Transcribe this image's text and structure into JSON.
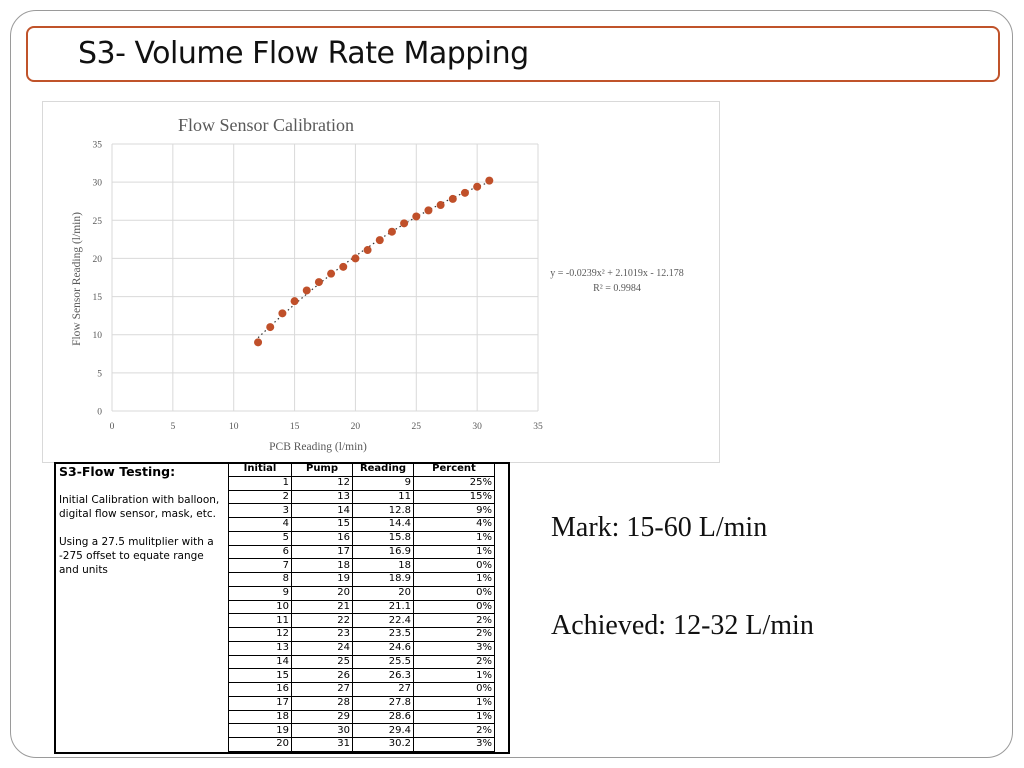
{
  "slide_title": "S3- Volume Flow Rate Mapping",
  "chart_data": {
    "type": "scatter",
    "title": "Flow Sensor Calibration",
    "xlabel": "PCB Reading (l/min)",
    "ylabel": "Flow Sensor Reading (l/min)",
    "xlim": [
      0,
      35
    ],
    "ylim": [
      0,
      35
    ],
    "xticks": [
      "0",
      "5",
      "10",
      "15",
      "20",
      "25",
      "30",
      "35"
    ],
    "yticks": [
      "0",
      "5",
      "10",
      "15",
      "20",
      "25",
      "30",
      "35"
    ],
    "grid": true,
    "point_color": "#c0502a",
    "x": [
      12,
      13,
      14,
      15,
      16,
      17,
      18,
      19,
      20,
      21,
      22,
      23,
      24,
      25,
      26,
      27,
      28,
      29,
      30,
      31
    ],
    "y": [
      9,
      11,
      12.8,
      14.4,
      15.8,
      16.9,
      18,
      18.9,
      20,
      21.1,
      22.4,
      23.5,
      24.6,
      25.5,
      26.3,
      27,
      27.8,
      28.6,
      29.4,
      30.2
    ],
    "trendline": {
      "type": "polynomial",
      "coefficients": [
        -0.0239,
        2.1019,
        -12.178
      ],
      "style": "dotted",
      "equation_label": "y = -0.0239x² + 2.1019x - 12.178",
      "r2_label": "R² = 0.9984"
    }
  },
  "notes": {
    "title": "S3-Flow Testing:",
    "para1": "Initial Calibration with balloon, digital flow sensor, mask, etc.",
    "para2": "Using a 27.5 mulitplier with a -275 offset to equate range and units"
  },
  "table": {
    "headers": [
      "Initial",
      "Pump",
      "Reading",
      "Percent"
    ],
    "rows": [
      [
        "1",
        "12",
        "9",
        "25%"
      ],
      [
        "2",
        "13",
        "11",
        "15%"
      ],
      [
        "3",
        "14",
        "12.8",
        "9%"
      ],
      [
        "4",
        "15",
        "14.4",
        "4%"
      ],
      [
        "5",
        "16",
        "15.8",
        "1%"
      ],
      [
        "6",
        "17",
        "16.9",
        "1%"
      ],
      [
        "7",
        "18",
        "18",
        "0%"
      ],
      [
        "8",
        "19",
        "18.9",
        "1%"
      ],
      [
        "9",
        "20",
        "20",
        "0%"
      ],
      [
        "10",
        "21",
        "21.1",
        "0%"
      ],
      [
        "11",
        "22",
        "22.4",
        "2%"
      ],
      [
        "12",
        "23",
        "23.5",
        "2%"
      ],
      [
        "13",
        "24",
        "24.6",
        "3%"
      ],
      [
        "14",
        "25",
        "25.5",
        "2%"
      ],
      [
        "15",
        "26",
        "26.3",
        "1%"
      ],
      [
        "16",
        "27",
        "27",
        "0%"
      ],
      [
        "17",
        "28",
        "27.8",
        "1%"
      ],
      [
        "18",
        "29",
        "28.6",
        "1%"
      ],
      [
        "19",
        "30",
        "29.4",
        "2%"
      ],
      [
        "20",
        "31",
        "30.2",
        "3%"
      ]
    ]
  },
  "mark_text": "Mark: 15-60 L/min",
  "achieved_text": "Achieved: 12-32 L/min"
}
